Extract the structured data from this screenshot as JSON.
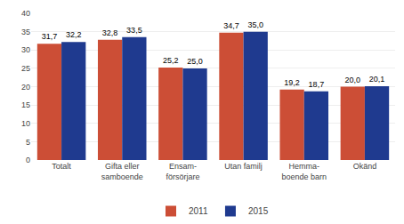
{
  "chart_data": {
    "type": "bar",
    "categories": [
      "Totalt",
      "Gifta eller\nsamboende",
      "Ensam-\nförsörjare",
      "Utan familj",
      "Hemma-\nboende barn",
      "Okänd"
    ],
    "series": [
      {
        "name": "2011",
        "color": "#cc4e36",
        "values": [
          31.7,
          32.8,
          25.2,
          34.7,
          19.2,
          20.0
        ],
        "value_labels": [
          "31,7",
          "32,8",
          "25,2",
          "34,7",
          "19,2",
          "20,0"
        ]
      },
      {
        "name": "2015",
        "color": "#1f3a8f",
        "values": [
          32.2,
          33.5,
          25.0,
          35.0,
          18.7,
          20.1
        ],
        "value_labels": [
          "32,2",
          "33,5",
          "25,0",
          "35,0",
          "18,7",
          "20,1"
        ]
      }
    ],
    "ylim": [
      0,
      40
    ],
    "yticks": [
      0,
      5,
      10,
      15,
      20,
      25,
      30,
      35,
      40
    ],
    "grid": true,
    "legend": "bottom",
    "data_labels": true
  }
}
